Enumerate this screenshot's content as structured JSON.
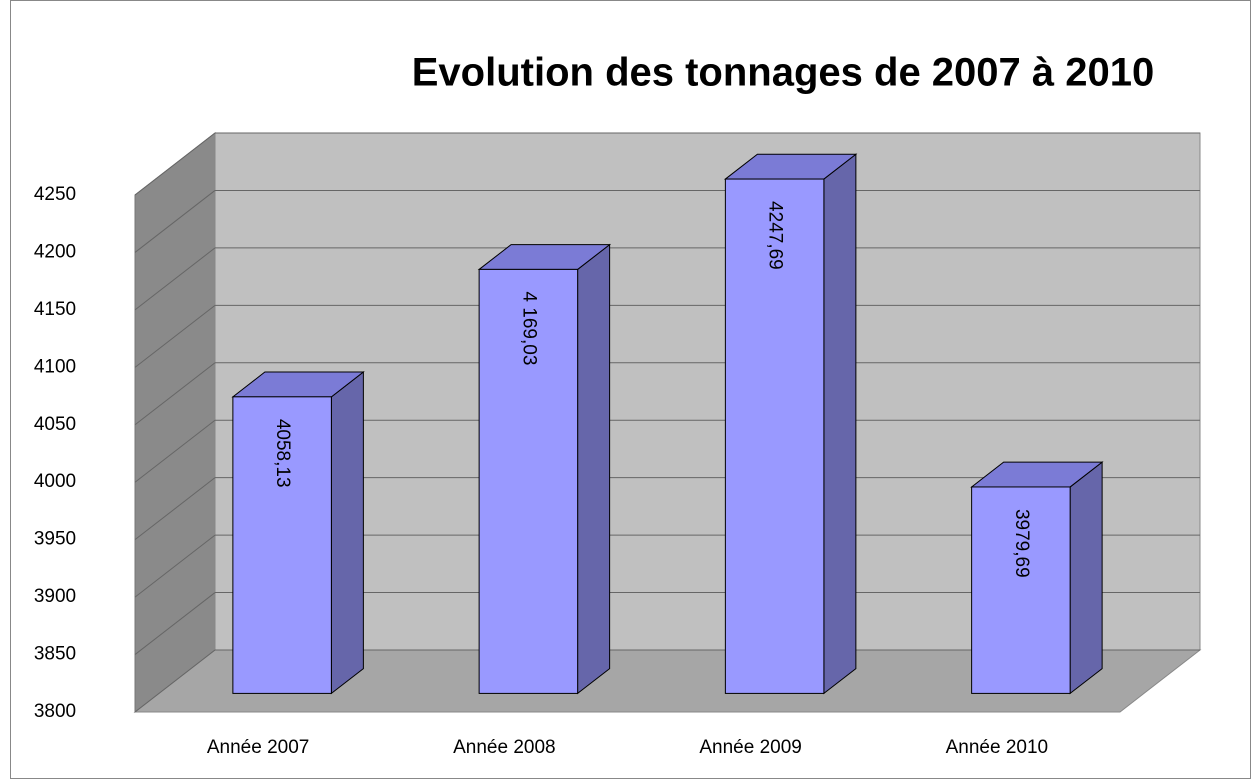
{
  "chart_data": {
    "type": "bar3d",
    "title": "Evolution des tonnages de 2007 à 2010",
    "categories": [
      "Année 2007",
      "Année 2008",
      "Année 2009",
      "Année 2010"
    ],
    "values": [
      4058.13,
      4169.03,
      4247.69,
      3979.69
    ],
    "value_labels": [
      "4058,13",
      "4 169,03",
      "4247,69",
      "3979,69"
    ],
    "color": "#9999ff",
    "ylim": [
      3800,
      4250
    ],
    "yticks": [
      3800,
      3850,
      3900,
      3950,
      4000,
      4050,
      4100,
      4150,
      4200,
      4250
    ],
    "grid": true
  }
}
